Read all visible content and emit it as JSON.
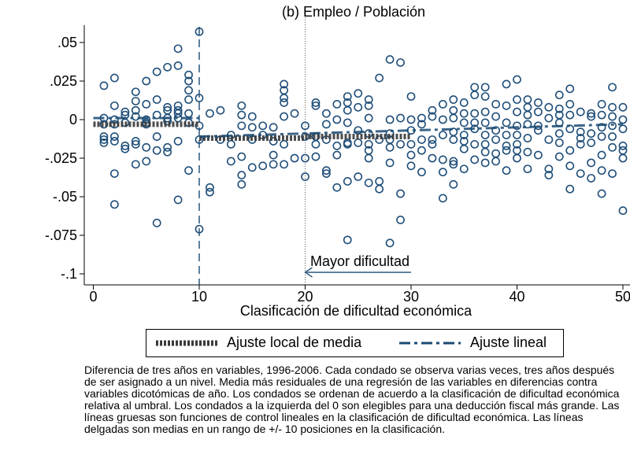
{
  "chart_data": {
    "type": "scatter",
    "title": "(b) Empleo / Población",
    "xlabel": "Clasificación de dificultad económica",
    "ylabel": "",
    "xlim": [
      -1,
      51
    ],
    "ylim": [
      -1.0,
      0.06
    ],
    "x_ticks": [
      0,
      10,
      20,
      30,
      40,
      50
    ],
    "x_tick_labels": [
      "0",
      "10",
      "20",
      "30",
      "40",
      "50"
    ],
    "y_ticks": [
      0.05,
      0.025,
      0,
      -0.025,
      -0.05,
      -0.075,
      -0.1
    ],
    "y_tick_labels": [
      ".05",
      ".025",
      "0",
      "-.025",
      "-.05",
      "-.075",
      "-.1"
    ],
    "grid": false,
    "threshold_x": 10,
    "reference_x": 20,
    "annotation": {
      "text": "Mayor dificultad",
      "arrow_from_x": 30,
      "arrow_to_x": 20,
      "y": -0.099
    },
    "series": [
      {
        "name": "Ajuste local de media",
        "kind": "step",
        "segments": [
          {
            "x0": 0,
            "x1": 10,
            "y": -0.003
          },
          {
            "x0": 10,
            "x1": 20,
            "y": -0.012
          },
          {
            "x0": 20,
            "x1": 30,
            "y": -0.011
          }
        ]
      },
      {
        "name": "Ajuste lineal",
        "kind": "line",
        "segments": [
          {
            "x0": 0,
            "x1": 10,
            "y0": 0.001,
            "y1": 0.001
          },
          {
            "x0": 10,
            "x1": 50,
            "y0": -0.011,
            "y1": -0.003
          }
        ]
      }
    ],
    "points": [
      [
        1,
        0.022
      ],
      [
        1,
        0.001
      ],
      [
        1,
        -0.003
      ],
      [
        1,
        -0.011
      ],
      [
        1,
        -0.013
      ],
      [
        1,
        -0.015
      ],
      [
        2,
        0.027
      ],
      [
        2,
        0.009
      ],
      [
        2,
        0.0
      ],
      [
        2,
        -0.003
      ],
      [
        2,
        -0.011
      ],
      [
        2,
        -0.014
      ],
      [
        2,
        -0.035
      ],
      [
        2,
        -0.055
      ],
      [
        3,
        0.005
      ],
      [
        3,
        0.003
      ],
      [
        3,
        -0.002
      ],
      [
        3,
        -0.017
      ],
      [
        3,
        -0.019
      ],
      [
        4,
        0.018
      ],
      [
        4,
        0.012
      ],
      [
        4,
        0.006
      ],
      [
        4,
        0.002
      ],
      [
        4,
        -0.014
      ],
      [
        4,
        -0.016
      ],
      [
        4,
        -0.029
      ],
      [
        5,
        0.025
      ],
      [
        5,
        0.01
      ],
      [
        5,
        0.0
      ],
      [
        5,
        -0.002
      ],
      [
        5,
        -0.003
      ],
      [
        5,
        -0.018
      ],
      [
        5,
        -0.027
      ],
      [
        6,
        0.031
      ],
      [
        6,
        0.013
      ],
      [
        6,
        0.003
      ],
      [
        6,
        -0.011
      ],
      [
        6,
        -0.02
      ],
      [
        6,
        -0.067
      ],
      [
        7,
        0.034
      ],
      [
        7,
        0.008
      ],
      [
        7,
        0.006
      ],
      [
        7,
        0.001
      ],
      [
        7,
        -0.001
      ],
      [
        7,
        -0.018
      ],
      [
        7,
        -0.021
      ],
      [
        8,
        0.046
      ],
      [
        8,
        0.035
      ],
      [
        8,
        0.009
      ],
      [
        8,
        0.006
      ],
      [
        8,
        0.004
      ],
      [
        8,
        0.001
      ],
      [
        8,
        -0.014
      ],
      [
        8,
        -0.052
      ],
      [
        9,
        0.029
      ],
      [
        9,
        0.025
      ],
      [
        9,
        0.019
      ],
      [
        9,
        0.013
      ],
      [
        9,
        0.004
      ],
      [
        9,
        -0.002
      ],
      [
        9,
        -0.033
      ],
      [
        10,
        0.057
      ],
      [
        10,
        0.014
      ],
      [
        10,
        -0.004
      ],
      [
        10,
        -0.013
      ],
      [
        10,
        -0.071
      ],
      [
        11,
        0.004
      ],
      [
        11,
        -0.044
      ],
      [
        11,
        -0.047
      ],
      [
        12,
        0.006
      ],
      [
        12,
        -0.013
      ],
      [
        13,
        -0.01
      ],
      [
        13,
        -0.016
      ],
      [
        13,
        -0.027
      ],
      [
        14,
        0.009
      ],
      [
        14,
        0.003
      ],
      [
        14,
        -0.004
      ],
      [
        14,
        -0.024
      ],
      [
        14,
        -0.036
      ],
      [
        14,
        -0.042
      ],
      [
        15,
        0.002
      ],
      [
        15,
        -0.005
      ],
      [
        15,
        -0.013
      ],
      [
        15,
        -0.031
      ],
      [
        16,
        -0.004
      ],
      [
        16,
        -0.01
      ],
      [
        16,
        -0.03
      ],
      [
        17,
        -0.005
      ],
      [
        17,
        -0.014
      ],
      [
        17,
        -0.023
      ],
      [
        17,
        -0.029
      ],
      [
        18,
        0.023
      ],
      [
        18,
        0.019
      ],
      [
        18,
        0.014
      ],
      [
        18,
        0.011
      ],
      [
        18,
        0.002
      ],
      [
        18,
        -0.016
      ],
      [
        18,
        -0.029
      ],
      [
        19,
        0.004
      ],
      [
        19,
        -0.025
      ],
      [
        20,
        -0.004
      ],
      [
        20,
        -0.011
      ],
      [
        20,
        -0.025
      ],
      [
        20,
        -0.037
      ],
      [
        21,
        0.011
      ],
      [
        21,
        0.009
      ],
      [
        21,
        -0.011
      ],
      [
        21,
        -0.016
      ],
      [
        21,
        -0.024
      ],
      [
        22,
        0.004
      ],
      [
        22,
        -0.003
      ],
      [
        22,
        -0.013
      ],
      [
        22,
        -0.033
      ],
      [
        22,
        -0.035
      ],
      [
        23,
        0.01
      ],
      [
        23,
        0.0
      ],
      [
        23,
        -0.017
      ],
      [
        23,
        -0.023
      ],
      [
        23,
        -0.044
      ],
      [
        24,
        0.015
      ],
      [
        24,
        0.011
      ],
      [
        24,
        0.006
      ],
      [
        24,
        -0.002
      ],
      [
        24,
        -0.015
      ],
      [
        24,
        -0.016
      ],
      [
        24,
        -0.04
      ],
      [
        24,
        -0.078
      ],
      [
        25,
        0.017
      ],
      [
        25,
        0.008
      ],
      [
        25,
        -0.007
      ],
      [
        25,
        -0.015
      ],
      [
        25,
        -0.037
      ],
      [
        26,
        0.013
      ],
      [
        26,
        0.009
      ],
      [
        26,
        0.001
      ],
      [
        26,
        -0.009
      ],
      [
        26,
        -0.016
      ],
      [
        26,
        -0.02
      ],
      [
        26,
        -0.025
      ],
      [
        26,
        -0.041
      ],
      [
        27,
        0.027
      ],
      [
        27,
        -0.013
      ],
      [
        27,
        -0.04
      ],
      [
        27,
        -0.045
      ],
      [
        28,
        0.039
      ],
      [
        28,
        0.0
      ],
      [
        28,
        -0.009
      ],
      [
        28,
        -0.013
      ],
      [
        28,
        -0.018
      ],
      [
        28,
        -0.028
      ],
      [
        28,
        -0.08
      ],
      [
        29,
        0.037
      ],
      [
        29,
        0.001
      ],
      [
        29,
        -0.016
      ],
      [
        29,
        -0.048
      ],
      [
        29,
        -0.065
      ],
      [
        30,
        0.015
      ],
      [
        30,
        0.0
      ],
      [
        30,
        -0.007
      ],
      [
        30,
        -0.016
      ],
      [
        30,
        -0.023
      ],
      [
        30,
        -0.03
      ],
      [
        31,
        0.001
      ],
      [
        31,
        -0.003
      ],
      [
        31,
        -0.013
      ],
      [
        31,
        -0.02
      ],
      [
        31,
        -0.034
      ],
      [
        32,
        0.006
      ],
      [
        32,
        0.002
      ],
      [
        32,
        -0.013
      ],
      [
        32,
        -0.016
      ],
      [
        32,
        -0.025
      ],
      [
        33,
        0.01
      ],
      [
        33,
        0.0
      ],
      [
        33,
        -0.01
      ],
      [
        33,
        -0.026
      ],
      [
        33,
        -0.034
      ],
      [
        33,
        -0.051
      ],
      [
        34,
        0.013
      ],
      [
        34,
        0.006
      ],
      [
        34,
        0.001
      ],
      [
        34,
        -0.008
      ],
      [
        34,
        -0.013
      ],
      [
        34,
        -0.027
      ],
      [
        34,
        -0.029
      ],
      [
        34,
        -0.042
      ],
      [
        35,
        0.011
      ],
      [
        35,
        0.004
      ],
      [
        35,
        -0.002
      ],
      [
        35,
        -0.01
      ],
      [
        35,
        -0.014
      ],
      [
        35,
        -0.019
      ],
      [
        35,
        -0.032
      ],
      [
        36,
        0.021
      ],
      [
        36,
        0.016
      ],
      [
        36,
        0.004
      ],
      [
        36,
        -0.002
      ],
      [
        36,
        -0.006
      ],
      [
        36,
        -0.016
      ],
      [
        36,
        -0.026
      ],
      [
        37,
        0.021
      ],
      [
        37,
        0.015
      ],
      [
        37,
        0.005
      ],
      [
        37,
        -0.002
      ],
      [
        37,
        -0.01
      ],
      [
        37,
        -0.016
      ],
      [
        37,
        -0.021
      ],
      [
        37,
        -0.028
      ],
      [
        38,
        0.01
      ],
      [
        38,
        0.002
      ],
      [
        38,
        -0.007
      ],
      [
        38,
        -0.013
      ],
      [
        38,
        -0.022
      ],
      [
        38,
        -0.027
      ],
      [
        39,
        0.023
      ],
      [
        39,
        0.009
      ],
      [
        39,
        -0.002
      ],
      [
        39,
        -0.01
      ],
      [
        39,
        -0.017
      ],
      [
        39,
        -0.02
      ],
      [
        39,
        -0.033
      ],
      [
        40,
        0.026
      ],
      [
        40,
        0.013
      ],
      [
        40,
        0.005
      ],
      [
        40,
        -0.004
      ],
      [
        40,
        -0.01
      ],
      [
        40,
        -0.016
      ],
      [
        40,
        -0.02
      ],
      [
        40,
        -0.025
      ],
      [
        41,
        0.013
      ],
      [
        41,
        0.008
      ],
      [
        41,
        0.003
      ],
      [
        41,
        -0.003
      ],
      [
        41,
        -0.012
      ],
      [
        41,
        -0.021
      ],
      [
        41,
        -0.032
      ],
      [
        42,
        0.011
      ],
      [
        42,
        0.005
      ],
      [
        42,
        -0.004
      ],
      [
        42,
        -0.007
      ],
      [
        42,
        -0.023
      ],
      [
        43,
        0.008
      ],
      [
        43,
        0.001
      ],
      [
        43,
        -0.013
      ],
      [
        43,
        -0.032
      ],
      [
        43,
        -0.036
      ],
      [
        44,
        0.016
      ],
      [
        44,
        0.007
      ],
      [
        44,
        0.003
      ],
      [
        44,
        -0.002
      ],
      [
        44,
        -0.009
      ],
      [
        44,
        -0.015
      ],
      [
        44,
        -0.024
      ],
      [
        45,
        0.02
      ],
      [
        45,
        0.01
      ],
      [
        45,
        0.003
      ],
      [
        45,
        -0.006
      ],
      [
        45,
        -0.02
      ],
      [
        45,
        -0.03
      ],
      [
        45,
        -0.045
      ],
      [
        46,
        0.005
      ],
      [
        46,
        -0.008
      ],
      [
        46,
        -0.012
      ],
      [
        46,
        -0.016
      ],
      [
        46,
        -0.035
      ],
      [
        47,
        0.004
      ],
      [
        47,
        0.002
      ],
      [
        47,
        -0.009
      ],
      [
        47,
        -0.015
      ],
      [
        47,
        -0.028
      ],
      [
        47,
        -0.038
      ],
      [
        48,
        0.01
      ],
      [
        48,
        0.003
      ],
      [
        48,
        -0.005
      ],
      [
        48,
        -0.011
      ],
      [
        48,
        -0.023
      ],
      [
        48,
        -0.033
      ],
      [
        48,
        -0.048
      ],
      [
        49,
        0.021
      ],
      [
        49,
        0.008
      ],
      [
        49,
        0.002
      ],
      [
        49,
        -0.004
      ],
      [
        49,
        -0.011
      ],
      [
        49,
        -0.018
      ],
      [
        49,
        -0.035
      ],
      [
        50,
        0.008
      ],
      [
        50,
        0.0
      ],
      [
        50,
        -0.006
      ],
      [
        50,
        -0.017
      ],
      [
        50,
        -0.02
      ],
      [
        50,
        -0.025
      ],
      [
        50,
        -0.059
      ]
    ]
  },
  "legend": {
    "local_mean_label": "Ajuste local de media",
    "linear_label": "Ajuste lineal"
  },
  "colors": {
    "marker": "#1f4e79",
    "step": "#3a3a3a",
    "linear": "#1a4a73",
    "axis": "#000000"
  },
  "note": "Diferencia de tres años en variables, 1996-2006. Cada condado se observa varias veces, tres años después de ser asignado a un nivel. Media más residuales de una regresión de las variables  en diferencias contra variables dicotómicas de año. Los condados se ordenan de acuerdo a la clasificación de dificultad económica relativa al umbral. Los condados a la izquierda del 0 son elegibles para una deducción fiscal más grande. Las líneas gruesas son funciones de control lineales en la clasificación de dificultad económica. Las líneas delgadas son medias en un rango de +/- 10 posiciones en la clasificación."
}
